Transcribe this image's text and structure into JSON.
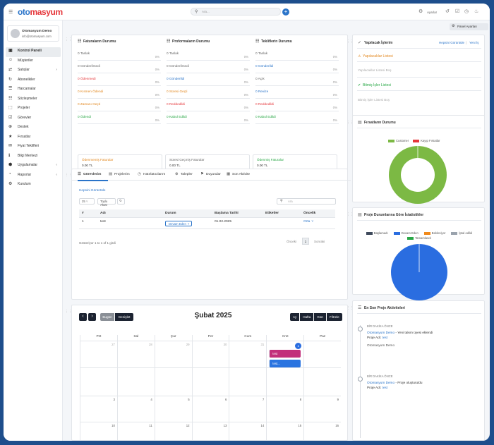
{
  "app": {
    "logo_a": "oto",
    "logo_b": "masyum",
    "search_placeholder": "Ara...",
    "settings_label": "Ayarlar"
  },
  "user": {
    "name": "Otomasyum Demo",
    "email": "info@otomasyum.com"
  },
  "menu": [
    {
      "label": "Kontrol Paneli",
      "icon": "▣",
      "active": true,
      "chev": ""
    },
    {
      "label": "Müşteriler",
      "icon": "☺",
      "chev": ""
    },
    {
      "label": "Satışlar",
      "icon": "⇄",
      "chev": "›"
    },
    {
      "label": "Abonelikler",
      "icon": "↻",
      "chev": ""
    },
    {
      "label": "Harcamalar",
      "icon": "☰",
      "chev": ""
    },
    {
      "label": "Sözleşmeler",
      "icon": "☷",
      "chev": ""
    },
    {
      "label": "Projeler",
      "icon": "⬚",
      "chev": ""
    },
    {
      "label": "Görevler",
      "icon": "☑",
      "chev": ""
    },
    {
      "label": "Destek",
      "icon": "⊕",
      "chev": ""
    },
    {
      "label": "Fırsatlar",
      "icon": "★",
      "chev": ""
    },
    {
      "label": "Fiyat Teklifleri",
      "icon": "✉",
      "chev": ""
    },
    {
      "label": "Bilgi Merkezi",
      "icon": "ℹ",
      "chev": ""
    },
    {
      "label": "Uygulamalar",
      "icon": "⬢",
      "chev": "‹"
    },
    {
      "label": "Raporlar",
      "icon": "◔",
      "chev": "‹"
    },
    {
      "label": "Kurulum",
      "icon": "⚙",
      "chev": ""
    }
  ],
  "panel_settings": "Panel Ayarları",
  "finance": {
    "cols": [
      {
        "title": "Faturaların Durumu",
        "rows": [
          {
            "label": "0 Taslak",
            "pct": "0%",
            "color": "#666"
          },
          {
            "label": "0 Gönderilmedi",
            "pct": "0%",
            "color": "#666"
          },
          {
            "label": "0 Ödenmedi",
            "pct": "0%",
            "color": "#e5363a"
          },
          {
            "label": "0 Kısmen Ödendi",
            "pct": "0%",
            "color": "#e2861c"
          },
          {
            "label": "0 Zamanı Geçti",
            "pct": "0%",
            "color": "#e2861c"
          },
          {
            "label": "0 Ödendi",
            "pct": "0%",
            "color": "#28a745"
          }
        ]
      },
      {
        "title": "Proformaların Durumu",
        "rows": [
          {
            "label": "0 Taslak",
            "pct": "0%",
            "color": "#666"
          },
          {
            "label": "0 Gönderilmedi",
            "pct": "0%",
            "color": "#666"
          },
          {
            "label": "0 Gönderildi",
            "pct": "0%",
            "color": "#2a74c9"
          },
          {
            "label": "0 Süresi Geçti",
            "pct": "0%",
            "color": "#e2861c"
          },
          {
            "label": "0 Reddedildi",
            "pct": "0%",
            "color": "#e5363a"
          },
          {
            "label": "0 Kabul Edildi",
            "pct": "0%",
            "color": "#28a745"
          }
        ]
      },
      {
        "title": "Tekliflerin Durumu",
        "rows": [
          {
            "label": "0 Taslak",
            "pct": "0%",
            "color": "#666"
          },
          {
            "label": "0 Gönderildi",
            "pct": "0%",
            "color": "#2a74c9"
          },
          {
            "label": "0 Açık",
            "pct": "0%",
            "color": "#666"
          },
          {
            "label": "0 Revize",
            "pct": "0%",
            "color": "#2a74c9"
          },
          {
            "label": "0 Reddedildi",
            "pct": "0%",
            "color": "#e5363a"
          },
          {
            "label": "0 Kabul Edildi",
            "pct": "0%",
            "color": "#28a745"
          }
        ]
      }
    ],
    "summary": [
      {
        "title": "Ödenmemiş Faturalar",
        "value": "0.00 TL",
        "color": "#e2861c"
      },
      {
        "title": "Süresi Geçmiş Faturalar",
        "value": "0.00 TL",
        "color": "#666"
      },
      {
        "title": "Ödenmiş Faturalar",
        "value": "0.00 TL",
        "color": "#28a745"
      }
    ]
  },
  "todo": {
    "title": "Yapılacak İşlerim",
    "view_all": "Hepsini Görüntüle",
    "new": "Yeni İş",
    "pending_title": "Yapılacaklar Listesi",
    "pending_empty": "Yapılacaklar Listesi Boş",
    "done_title": "Bitmiş İşler Listesi",
    "done_empty": "Bitmiş İşler Listesi Boş"
  },
  "opps": {
    "title": "Fırsatların Durumu",
    "legend": [
      {
        "name": "Customer",
        "color": "#7cb944"
      },
      {
        "name": "Kayıp Fırsatlar",
        "color": "#e5363a"
      }
    ],
    "chart_data": {
      "type": "pie",
      "categories": [
        "Customer",
        "Kayıp Fırsatlar"
      ],
      "values": [
        1,
        0
      ]
    }
  },
  "tasks": {
    "tabs": [
      "Görevlerim",
      "Projelerim",
      "Hatırlatıcılarım",
      "Talepler",
      "Duyurular",
      "Son Aktivite"
    ],
    "view_all": "Hepsini Görüntüle",
    "page_size": "25",
    "bulk": "Toplu Aktar",
    "search_placeholder": "Ara",
    "headers": [
      "#",
      "Adı",
      "Durum",
      "Başlama Tarihi",
      "Etiketler",
      "Öncelik"
    ],
    "rows": [
      {
        "id": "1",
        "name": "test",
        "status": "Devam Eden",
        "start": "01.02.2025",
        "tags": "",
        "priority": "Orta"
      }
    ],
    "info": "Gösteriyor 1 to 1 of 1 girdi",
    "prev": "Önceki",
    "page": "1",
    "next": "Sonraki"
  },
  "projstats": {
    "title": "Proje Durumlarına Göre İstatistikler",
    "legend": [
      {
        "name": "Başlamadı",
        "color": "#3f4a5c"
      },
      {
        "name": "Devam Eden",
        "color": "#2a6de0"
      },
      {
        "name": "Bekleniyor",
        "color": "#f08a1c"
      },
      {
        "name": "İptal edildi",
        "color": "#9aa3ad"
      },
      {
        "name": "Tamamlandı",
        "color": "#28a745"
      }
    ],
    "chart_data": {
      "type": "pie",
      "categories": [
        "Başlamadı",
        "Devam Eden",
        "Bekleniyor",
        "İptal edildi",
        "Tamamlandı"
      ],
      "values": [
        0,
        1,
        0,
        0,
        0
      ]
    }
  },
  "calendar": {
    "today": "Bugün",
    "expand": "Genişlet",
    "title": "Şubat 2025",
    "views": [
      "Ay",
      "Hafta",
      "Gün",
      "Filtrele"
    ],
    "days": [
      "Pzt",
      "Sal",
      "Çar",
      "Per",
      "Cum",
      "Cmt",
      "Paz"
    ],
    "weeks": [
      [
        "27",
        "28",
        "29",
        "30",
        "31",
        "1",
        ""
      ],
      [
        "",
        "",
        "",
        "",
        "",
        "",
        ""
      ],
      [
        "3",
        "4",
        "5",
        "6",
        "7",
        "8",
        "9"
      ],
      [
        "10",
        "11",
        "12",
        "13",
        "14",
        "15",
        "16"
      ]
    ],
    "events": [
      "test",
      "test..."
    ]
  },
  "activity": {
    "title": "En Son Proje Aktiviteleri",
    "items": [
      {
        "when": "BİR DAKİKA ÖNCE",
        "who": "Otomasyum Demo",
        "what": " - Yeni takım üyesi eklendi",
        "proj_label": "Proje Adı:",
        "proj": "test",
        "extra": "Otomasyum Demo"
      },
      {
        "when": "BİR DAKİKA ÖNCE",
        "who": "Otomasyum Demo",
        "what": " - Proje oluşturuldu",
        "proj_label": "Proje Adı:",
        "proj": "test",
        "extra": ""
      }
    ]
  }
}
